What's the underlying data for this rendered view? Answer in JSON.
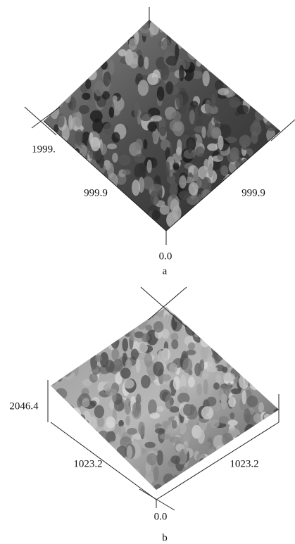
{
  "panels": [
    {
      "label": "a",
      "axis_labels": {
        "height": "1999.",
        "left": "999.9",
        "right": "999.9",
        "origin": "0.0"
      }
    },
    {
      "label": "b",
      "axis_labels": {
        "height": "2046.4",
        "left": "1023.2",
        "right": "1023.2",
        "origin": "0.0"
      }
    }
  ]
}
